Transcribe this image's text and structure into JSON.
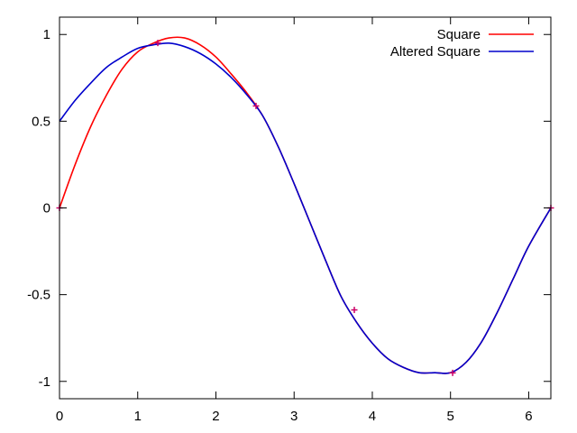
{
  "chart_data": {
    "type": "line",
    "title": "",
    "xlabel": "",
    "ylabel": "",
    "xlim": [
      0,
      6.283
    ],
    "ylim": [
      -1.1,
      1.1
    ],
    "xticks": [
      0,
      1,
      2,
      3,
      4,
      5,
      6
    ],
    "xtick_labels": [
      "0",
      "1",
      "2",
      "3",
      "4",
      "5",
      "6"
    ],
    "yticks": [
      -1,
      -0.5,
      0,
      0.5,
      1
    ],
    "ytick_labels": [
      "-1",
      "-0.5",
      "0",
      "0.5",
      "1"
    ],
    "grid": false,
    "legend_position": "top-right",
    "series": [
      {
        "name": "Square",
        "color": "#ff0000",
        "x": [
          0,
          0.2,
          0.4,
          0.6,
          0.8,
          1.0,
          1.2,
          1.4,
          1.6,
          1.8,
          2.0,
          2.2,
          2.4,
          2.6,
          2.8,
          3.0,
          3.2,
          3.4,
          3.6,
          3.8,
          4.0,
          4.2,
          4.4,
          4.6,
          4.8,
          5.0,
          5.2,
          5.4,
          5.6,
          5.8,
          6.0,
          6.283
        ],
        "y": [
          0,
          0.25,
          0.47,
          0.65,
          0.8,
          0.9,
          0.95,
          0.98,
          0.98,
          0.94,
          0.87,
          0.77,
          0.66,
          0.53,
          0.35,
          0.14,
          -0.08,
          -0.3,
          -0.51,
          -0.66,
          -0.78,
          -0.87,
          -0.92,
          -0.95,
          -0.95,
          -0.95,
          -0.89,
          -0.77,
          -0.6,
          -0.41,
          -0.22,
          0
        ]
      },
      {
        "name": "Altered Square",
        "color": "#0000cc",
        "x": [
          0,
          0.2,
          0.4,
          0.6,
          0.8,
          1.0,
          1.2,
          1.4,
          1.6,
          1.8,
          2.0,
          2.2,
          2.4,
          2.6,
          2.8,
          3.0,
          3.2,
          3.4,
          3.6,
          3.8,
          4.0,
          4.2,
          4.4,
          4.6,
          4.8,
          5.0,
          5.2,
          5.4,
          5.6,
          5.8,
          6.0,
          6.283
        ],
        "y": [
          0.5,
          0.62,
          0.72,
          0.81,
          0.87,
          0.92,
          0.94,
          0.95,
          0.93,
          0.89,
          0.83,
          0.75,
          0.65,
          0.53,
          0.35,
          0.14,
          -0.08,
          -0.3,
          -0.51,
          -0.66,
          -0.78,
          -0.87,
          -0.92,
          -0.95,
          -0.95,
          -0.95,
          -0.89,
          -0.77,
          -0.6,
          -0.41,
          -0.22,
          0
        ]
      }
    ],
    "markers": {
      "color": "#cc0066",
      "x": [
        0,
        1.257,
        2.513,
        3.77,
        5.027,
        6.283
      ],
      "y": [
        0,
        0.951,
        0.588,
        -0.588,
        -0.951,
        0
      ]
    }
  }
}
